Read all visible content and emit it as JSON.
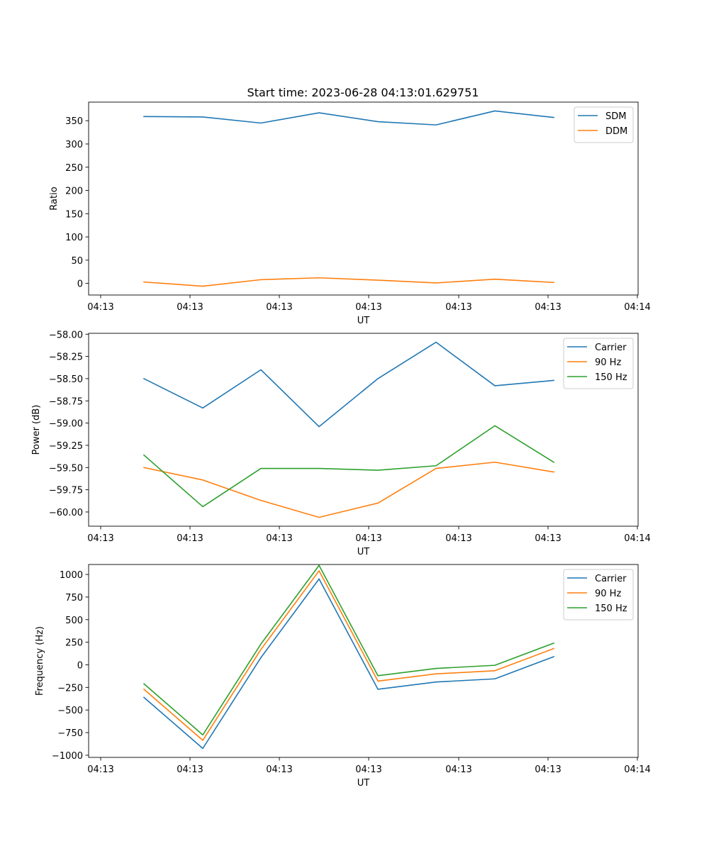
{
  "figure": {
    "title": "Start time: 2023-06-28 04:13:01.629751"
  },
  "chart_data": [
    {
      "type": "line",
      "title": "Start time: 2023-06-28 04:13:01.629751",
      "xlabel": "UT",
      "ylabel": "Ratio",
      "x_tick_labels": [
        "04:13",
        "04:13",
        "04:13",
        "04:13",
        "04:13",
        "04:13",
        "04:14"
      ],
      "y_ticks": [
        0,
        50,
        100,
        150,
        200,
        250,
        300,
        350
      ],
      "y_tick_labels": [
        "0",
        "50",
        "100",
        "150",
        "200",
        "250",
        "300",
        "350"
      ],
      "ylim": [
        -25,
        390
      ],
      "legend": "top-right",
      "grid": false,
      "series": [
        {
          "name": "SDM",
          "color": "#1f77b4",
          "values": [
            359,
            358,
            345,
            367,
            348,
            341,
            371,
            357
          ]
        },
        {
          "name": "DDM",
          "color": "#ff7f0e",
          "values": [
            3,
            -6,
            8,
            12,
            7,
            1,
            9,
            2
          ]
        }
      ]
    },
    {
      "type": "line",
      "xlabel": "UT",
      "ylabel": "Power (dB)",
      "x_tick_labels": [
        "04:13",
        "04:13",
        "04:13",
        "04:13",
        "04:13",
        "04:13",
        "04:14"
      ],
      "y_ticks": [
        -60.0,
        -59.75,
        -59.5,
        -59.25,
        -59.0,
        -58.75,
        -58.5,
        -58.25,
        -58.0
      ],
      "y_tick_labels": [
        "−60.00",
        "−59.75",
        "−59.50",
        "−59.25",
        "−59.00",
        "−58.75",
        "−58.50",
        "−58.25",
        "−58.00"
      ],
      "ylim": [
        -60.16,
        -57.99
      ],
      "legend": "top-right",
      "grid": false,
      "series": [
        {
          "name": "Carrier",
          "color": "#1f77b4",
          "values": [
            -58.5,
            -58.83,
            -58.4,
            -59.04,
            -58.5,
            -58.09,
            -58.58,
            -58.52
          ]
        },
        {
          "name": "90 Hz",
          "color": "#ff7f0e",
          "values": [
            -59.5,
            -59.64,
            -59.87,
            -60.06,
            -59.9,
            -59.51,
            -59.44,
            -59.55
          ]
        },
        {
          "name": "150 Hz",
          "color": "#2ca02c",
          "values": [
            -59.36,
            -59.94,
            -59.51,
            -59.51,
            -59.53,
            -59.48,
            -59.03,
            -59.44
          ]
        }
      ]
    },
    {
      "type": "line",
      "xlabel": "UT",
      "ylabel": "Frequency (Hz)",
      "x_tick_labels": [
        "04:13",
        "04:13",
        "04:13",
        "04:13",
        "04:13",
        "04:13",
        "04:14"
      ],
      "y_ticks": [
        -1000,
        -750,
        -500,
        -250,
        0,
        250,
        500,
        750,
        1000
      ],
      "y_tick_labels": [
        "−1000",
        "−750",
        "−500",
        "−250",
        "0",
        "250",
        "500",
        "750",
        "1000"
      ],
      "ylim": [
        -1024,
        1110
      ],
      "legend": "top-right",
      "grid": false,
      "series": [
        {
          "name": "Carrier",
          "color": "#1f77b4",
          "values": [
            -360,
            -925,
            80,
            950,
            -270,
            -190,
            -155,
            90
          ]
        },
        {
          "name": "90 Hz",
          "color": "#ff7f0e",
          "values": [
            -270,
            -835,
            170,
            1040,
            -180,
            -100,
            -65,
            180
          ]
        },
        {
          "name": "150 Hz",
          "color": "#2ca02c",
          "values": [
            -210,
            -775,
            230,
            1100,
            -120,
            -40,
            -5,
            240
          ]
        }
      ]
    }
  ]
}
